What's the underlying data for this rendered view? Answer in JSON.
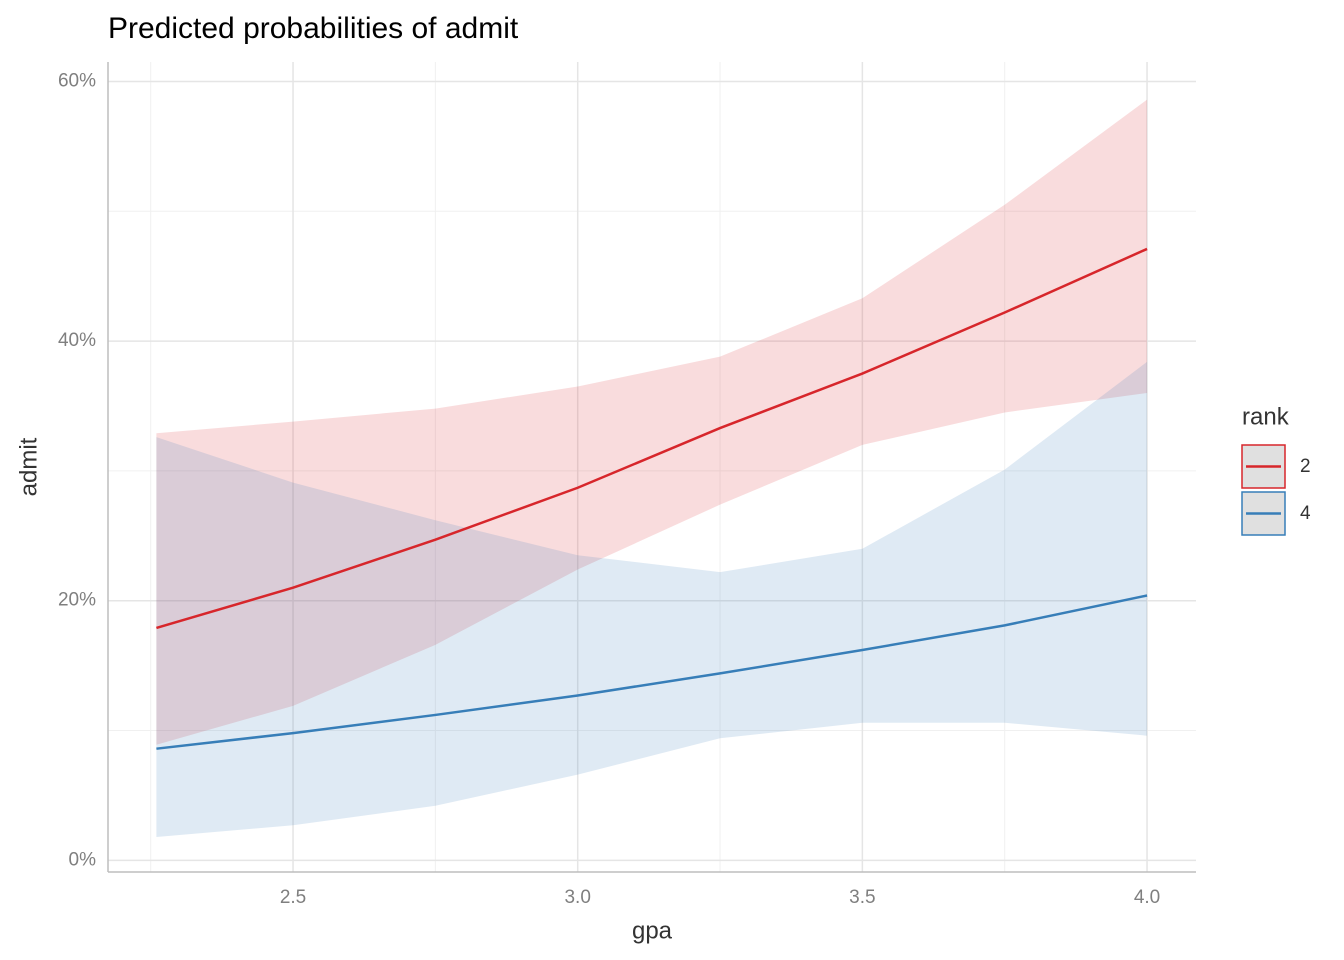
{
  "chart_data": {
    "type": "line",
    "title": "Predicted probabilities of admit",
    "x_label": "gpa",
    "y_label": "admit",
    "x": [
      2.26,
      2.5,
      2.75,
      3.0,
      3.25,
      3.5,
      3.75,
      4.0
    ],
    "series": [
      {
        "name": "2",
        "color": "#d7262b",
        "values": [
          17.9,
          21.0,
          24.7,
          28.7,
          33.3,
          37.5,
          42.2,
          47.1
        ],
        "lower": [
          8.9,
          11.9,
          16.6,
          22.4,
          27.4,
          32.0,
          34.5,
          36.0
        ],
        "upper": [
          32.9,
          33.8,
          34.8,
          36.5,
          38.8,
          43.3,
          50.5,
          58.6
        ]
      },
      {
        "name": "4",
        "color": "#377eb8",
        "values": [
          8.6,
          9.8,
          11.2,
          12.7,
          14.4,
          16.2,
          18.1,
          20.4
        ],
        "lower": [
          1.8,
          2.7,
          4.2,
          6.6,
          9.4,
          10.6,
          10.6,
          9.6
        ],
        "upper": [
          32.6,
          29.1,
          26.2,
          23.5,
          22.2,
          24.0,
          30.1,
          38.4
        ]
      }
    ],
    "xlim": [
      2.175,
      4.086
    ],
    "ylim": [
      -0.9,
      61.5
    ],
    "xticks": [
      2.5,
      {
        "value": 3.0,
        "label": "3.0"
      },
      3.5,
      {
        "value": 4.0,
        "label": "4.0"
      }
    ],
    "yticks": [
      {
        "value": 0,
        "label": "0%"
      },
      {
        "value": 20,
        "label": "20%"
      },
      {
        "value": 40,
        "label": "40%"
      },
      {
        "value": 60,
        "label": "60%"
      }
    ],
    "x_minor_ticks": [
      2.25,
      2.75,
      3.25,
      3.75
    ],
    "y_minor_ticks": [
      10,
      30,
      50
    ],
    "grid": true,
    "legend_title": "rank",
    "legend": "right"
  }
}
